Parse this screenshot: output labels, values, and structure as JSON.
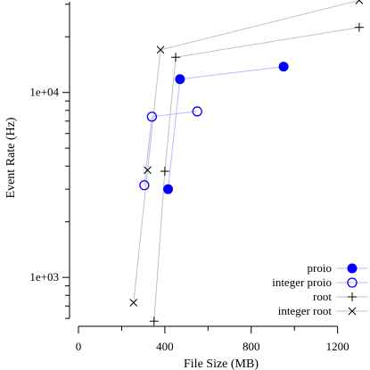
{
  "chart_data": {
    "type": "scatter",
    "xlabel": "File Size (MB)",
    "ylabel": "Event Rate (Hz)",
    "xlim": [
      0,
      1350
    ],
    "ylim_log10": [
      2.75,
      4.5
    ],
    "y_scale": "log",
    "grid": false,
    "legend_position": "bottom-right",
    "x_ticks": [
      0,
      400,
      800,
      1200
    ],
    "x_tick_labels": [
      "0",
      "400",
      "800",
      "1200"
    ],
    "y_ticks": [
      1000,
      10000
    ],
    "y_tick_labels": [
      "1e+03",
      "1e+04"
    ],
    "series": [
      {
        "name": "proio",
        "marker": "filled-circle",
        "color": "#0000ff",
        "line_color": "#b8b8ff",
        "points": [
          [
            415,
            3000
          ],
          [
            470,
            11800
          ],
          [
            950,
            13800
          ]
        ]
      },
      {
        "name": "integer proio",
        "marker": "open-circle",
        "color": "#0000ff",
        "line_color": "#b8b8ff",
        "points": [
          [
            305,
            3150
          ],
          [
            340,
            7400
          ],
          [
            550,
            7900
          ]
        ]
      },
      {
        "name": "root",
        "marker": "plus",
        "color": "#000000",
        "line_color": "#c0c0c0",
        "points": [
          [
            350,
            580
          ],
          [
            400,
            3750
          ],
          [
            450,
            15500
          ],
          [
            1300,
            22500
          ]
        ]
      },
      {
        "name": "integer root",
        "marker": "cross",
        "color": "#000000",
        "line_color": "#c0c0c0",
        "points": [
          [
            255,
            730
          ],
          [
            320,
            3800
          ],
          [
            380,
            17000
          ],
          [
            1300,
            31500
          ]
        ]
      }
    ]
  }
}
